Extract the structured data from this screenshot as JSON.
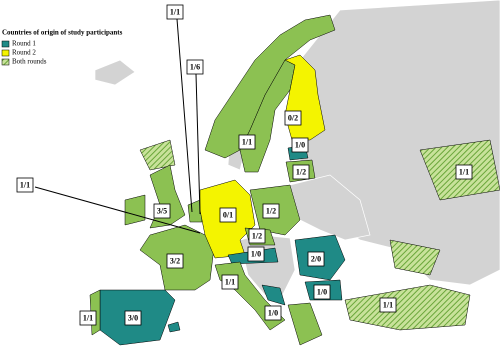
{
  "legend": {
    "title": "Countries of origin of study participants",
    "items": [
      "Round 1",
      "Round 2",
      "Both rounds"
    ]
  },
  "labels": [
    "1/1",
    "1/6",
    "0/2",
    "1/1",
    "1/0",
    "1/2",
    "1/1",
    "1/1",
    "3/5",
    "0/1",
    "1/2",
    "1/2",
    "3/2",
    "1/0",
    "2/0",
    "1/1",
    "1/0",
    "1/0",
    "1/1",
    "3/0",
    "1/1"
  ]
}
